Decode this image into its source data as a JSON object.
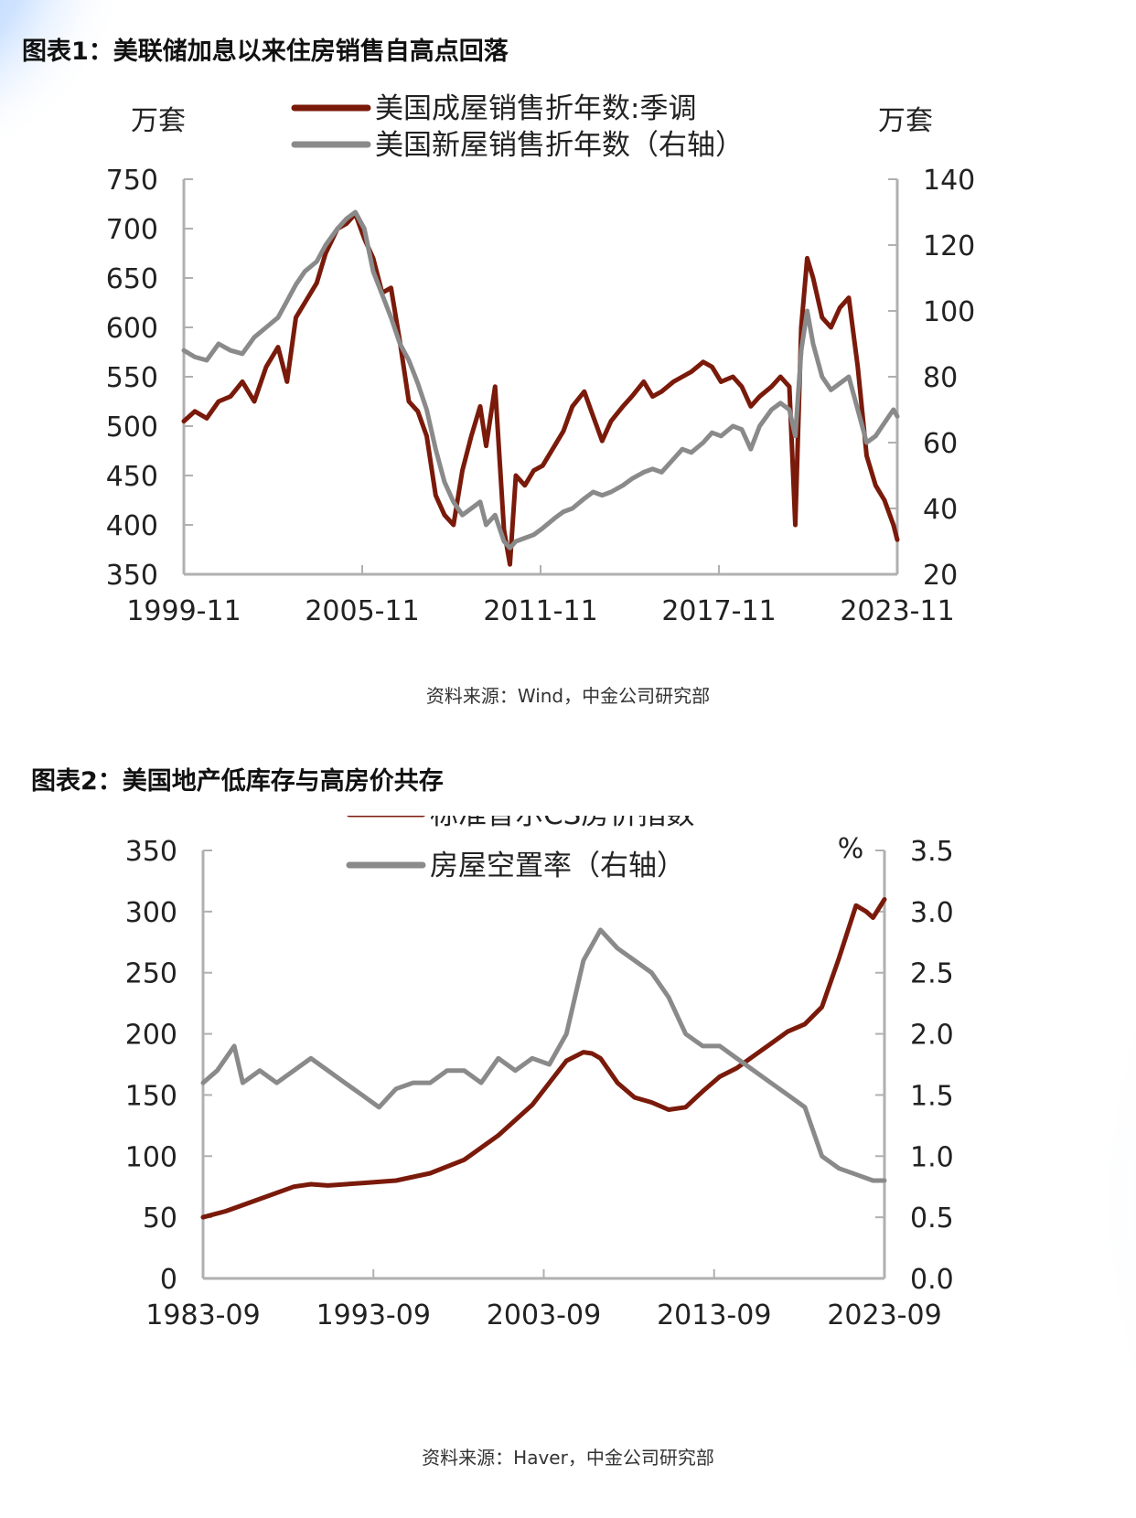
{
  "figure1": {
    "title": "图表1：美联储加息以来住房销售自高点回落",
    "source": "资料来源：Wind，中金公司研究部"
  },
  "figure2": {
    "title": "图表2：美国地产低库存与高房价共存",
    "source": "资料来源：Haver，中金公司研究部"
  },
  "colors": {
    "primary": "#7a1a0a",
    "secondary": "#8a8a8a",
    "axis": "#b0b0b0"
  },
  "chart_data": [
    {
      "type": "line",
      "y_unit_left": "万套",
      "y_unit_right": "万套",
      "x_ticks": [
        "1999-11",
        "2005-11",
        "2011-11",
        "2017-11",
        "2023-11"
      ],
      "x_range": [
        1999.83,
        2023.83
      ],
      "ylim_left": [
        350,
        750
      ],
      "yticks_left": [
        350,
        400,
        450,
        500,
        550,
        600,
        650,
        700,
        750
      ],
      "ylim_right": [
        20,
        140
      ],
      "yticks_right": [
        20,
        40,
        60,
        80,
        100,
        120,
        140
      ],
      "legend_position": "top-center",
      "grid": false,
      "series": [
        {
          "name": "美国成屋销售折年数:季调",
          "axis": "left",
          "x": [
            1999.83,
            2000.2,
            2000.6,
            2001.0,
            2001.4,
            2001.8,
            2002.2,
            2002.6,
            2003.0,
            2003.3,
            2003.6,
            2003.9,
            2004.3,
            2004.6,
            2005.0,
            2005.3,
            2005.6,
            2005.9,
            2006.2,
            2006.5,
            2006.8,
            2007.1,
            2007.4,
            2007.7,
            2008.0,
            2008.3,
            2008.6,
            2008.9,
            2009.2,
            2009.5,
            2009.8,
            2010.0,
            2010.3,
            2010.6,
            2010.8,
            2011.0,
            2011.3,
            2011.6,
            2011.9,
            2012.3,
            2012.6,
            2012.9,
            2013.3,
            2013.6,
            2013.9,
            2014.2,
            2014.6,
            2014.9,
            2015.3,
            2015.6,
            2015.9,
            2016.3,
            2016.6,
            2016.9,
            2017.3,
            2017.6,
            2017.9,
            2018.3,
            2018.6,
            2018.9,
            2019.2,
            2019.6,
            2019.9,
            2020.2,
            2020.4,
            2020.6,
            2020.8,
            2021.0,
            2021.3,
            2021.6,
            2021.9,
            2022.2,
            2022.5,
            2022.8,
            2023.1,
            2023.4,
            2023.7,
            2023.83
          ],
          "values": [
            505,
            515,
            508,
            525,
            530,
            545,
            525,
            560,
            580,
            545,
            610,
            625,
            645,
            675,
            700,
            705,
            715,
            690,
            670,
            635,
            640,
            585,
            525,
            515,
            490,
            430,
            410,
            400,
            455,
            490,
            520,
            480,
            540,
            395,
            360,
            450,
            440,
            455,
            460,
            480,
            495,
            520,
            535,
            510,
            485,
            505,
            520,
            530,
            545,
            530,
            535,
            545,
            550,
            555,
            565,
            560,
            545,
            550,
            540,
            520,
            530,
            540,
            550,
            540,
            400,
            600,
            670,
            650,
            610,
            600,
            620,
            630,
            560,
            470,
            440,
            425,
            400,
            385
          ]
        },
        {
          "name": "美国新屋销售折年数（右轴）",
          "axis": "right",
          "x": [
            1999.83,
            2000.2,
            2000.6,
            2001.0,
            2001.4,
            2001.8,
            2002.2,
            2002.6,
            2003.0,
            2003.3,
            2003.6,
            2003.9,
            2004.3,
            2004.6,
            2005.0,
            2005.3,
            2005.6,
            2005.9,
            2006.2,
            2006.5,
            2006.8,
            2007.1,
            2007.4,
            2007.7,
            2008.0,
            2008.3,
            2008.6,
            2008.9,
            2009.2,
            2009.5,
            2009.8,
            2010.0,
            2010.3,
            2010.6,
            2010.8,
            2011.0,
            2011.3,
            2011.6,
            2011.9,
            2012.3,
            2012.6,
            2012.9,
            2013.3,
            2013.6,
            2013.9,
            2014.2,
            2014.6,
            2014.9,
            2015.3,
            2015.6,
            2015.9,
            2016.3,
            2016.6,
            2016.9,
            2017.3,
            2017.6,
            2017.9,
            2018.3,
            2018.6,
            2018.9,
            2019.2,
            2019.6,
            2019.9,
            2020.2,
            2020.4,
            2020.6,
            2020.8,
            2021.0,
            2021.3,
            2021.6,
            2021.9,
            2022.2,
            2022.5,
            2022.8,
            2023.1,
            2023.4,
            2023.7,
            2023.83
          ],
          "values": [
            88,
            86,
            85,
            90,
            88,
            87,
            92,
            95,
            98,
            103,
            108,
            112,
            115,
            120,
            125,
            128,
            130,
            125,
            112,
            105,
            98,
            90,
            85,
            78,
            70,
            58,
            48,
            42,
            38,
            40,
            42,
            35,
            38,
            30,
            28,
            30,
            31,
            32,
            34,
            37,
            39,
            40,
            43,
            45,
            44,
            45,
            47,
            49,
            51,
            52,
            51,
            55,
            58,
            57,
            60,
            63,
            62,
            65,
            64,
            58,
            65,
            70,
            72,
            70,
            62,
            88,
            100,
            90,
            80,
            76,
            78,
            80,
            70,
            60,
            62,
            66,
            70,
            68
          ]
        }
      ]
    },
    {
      "type": "line",
      "y_unit_right": "%",
      "x_ticks": [
        "1983-09",
        "1993-09",
        "2003-09",
        "2013-09",
        "2023-09"
      ],
      "x_range": [
        1983.67,
        2023.67
      ],
      "ylim_left": [
        0,
        350
      ],
      "yticks_left": [
        0,
        50,
        100,
        150,
        200,
        250,
        300,
        350
      ],
      "ylim_right": [
        0.0,
        3.5
      ],
      "yticks_right": [
        "0.0",
        "0.5",
        "1.0",
        "1.5",
        "2.0",
        "2.5",
        "3.0",
        "3.5"
      ],
      "legend_position": "top-center",
      "grid": false,
      "series": [
        {
          "name": "标准普尔CS房价指数",
          "axis": "left",
          "x": [
            1983.67,
            1985,
            1987,
            1989,
            1990,
            1991,
            1993,
            1995,
            1997,
            1999,
            2001,
            2003,
            2004,
            2005,
            2006,
            2006.5,
            2007,
            2008,
            2009,
            2010,
            2011,
            2012,
            2013,
            2014,
            2015,
            2016,
            2017,
            2018,
            2019,
            2020,
            2021,
            2022,
            2022.6,
            2023,
            2023.67
          ],
          "values": [
            50,
            55,
            65,
            75,
            77,
            76,
            78,
            80,
            86,
            97,
            117,
            142,
            160,
            178,
            185,
            184,
            180,
            160,
            148,
            144,
            138,
            140,
            153,
            165,
            172,
            182,
            192,
            202,
            208,
            222,
            262,
            305,
            300,
            295,
            310
          ]
        },
        {
          "name": "房屋空置率（右轴）",
          "axis": "right",
          "x": [
            1983.67,
            1984.5,
            1985.5,
            1986,
            1987,
            1988,
            1989,
            1990,
            1991,
            1992,
            1993,
            1994,
            1995,
            1996,
            1997,
            1998,
            1999,
            2000,
            2001,
            2002,
            2003,
            2004,
            2005,
            2006,
            2007,
            2008,
            2009,
            2010,
            2011,
            2012,
            2013,
            2014,
            2015,
            2016,
            2017,
            2018,
            2019,
            2020,
            2021,
            2022,
            2023,
            2023.67
          ],
          "values": [
            1.6,
            1.7,
            1.9,
            1.6,
            1.7,
            1.6,
            1.7,
            1.8,
            1.7,
            1.6,
            1.5,
            1.4,
            1.55,
            1.6,
            1.6,
            1.7,
            1.7,
            1.6,
            1.8,
            1.7,
            1.8,
            1.75,
            2.0,
            2.6,
            2.85,
            2.7,
            2.6,
            2.5,
            2.3,
            2.0,
            1.9,
            1.9,
            1.8,
            1.7,
            1.6,
            1.5,
            1.4,
            1.0,
            0.9,
            0.85,
            0.8,
            0.8
          ]
        }
      ]
    }
  ]
}
